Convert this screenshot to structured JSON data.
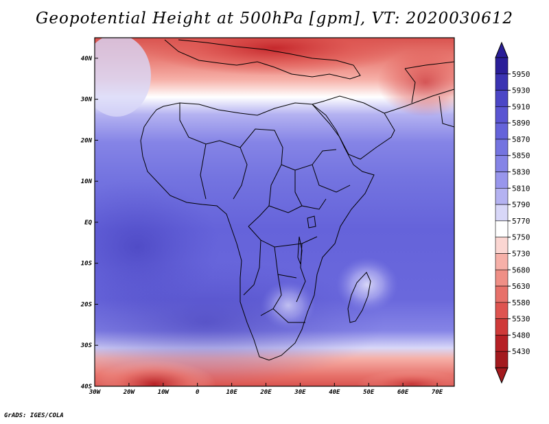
{
  "title": "Geopotential Height at 500hPa [gpm], VT: 2020030612",
  "credit": "GrADS: IGES/COLA",
  "map": {
    "variable": "Geopotential Height",
    "level": "500hPa",
    "units": "gpm",
    "valid_time": "2020030612",
    "lon_range": [
      -30,
      75
    ],
    "lat_range": [
      -40,
      45
    ],
    "lon_ticks": [
      "30W",
      "20W",
      "10W",
      "0",
      "10E",
      "20E",
      "30E",
      "40E",
      "50E",
      "60E",
      "70E"
    ],
    "lon_tick_values": [
      -30,
      -20,
      -10,
      0,
      10,
      20,
      30,
      40,
      50,
      60,
      70
    ],
    "lat_ticks": [
      "40S",
      "30S",
      "20S",
      "10S",
      "EQ",
      "10N",
      "20N",
      "30N",
      "40N"
    ],
    "lat_tick_values": [
      -40,
      -30,
      -20,
      -10,
      0,
      10,
      20,
      30,
      40
    ]
  },
  "colorbar": {
    "levels": [
      "5950",
      "5930",
      "5910",
      "5890",
      "5870",
      "5850",
      "5830",
      "5810",
      "5790",
      "5770",
      "5750",
      "5730",
      "5680",
      "5630",
      "5580",
      "5530",
      "5480",
      "5430"
    ],
    "colors": [
      "#2a1e98",
      "#3a33b2",
      "#4b46c6",
      "#5a55d2",
      "#6563da",
      "#7474e0",
      "#8584e6",
      "#9896ec",
      "#b4b2f1",
      "#d8d7f8",
      "#ffffff",
      "#fbd6d2",
      "#f6b0a8",
      "#ef8f86",
      "#e7716a",
      "#de5450",
      "#cf3a39",
      "#b62025",
      "#a31a1e"
    ],
    "top_arrow_color": "#2a1e98",
    "bottom_arrow_color": "#a31a1e"
  }
}
